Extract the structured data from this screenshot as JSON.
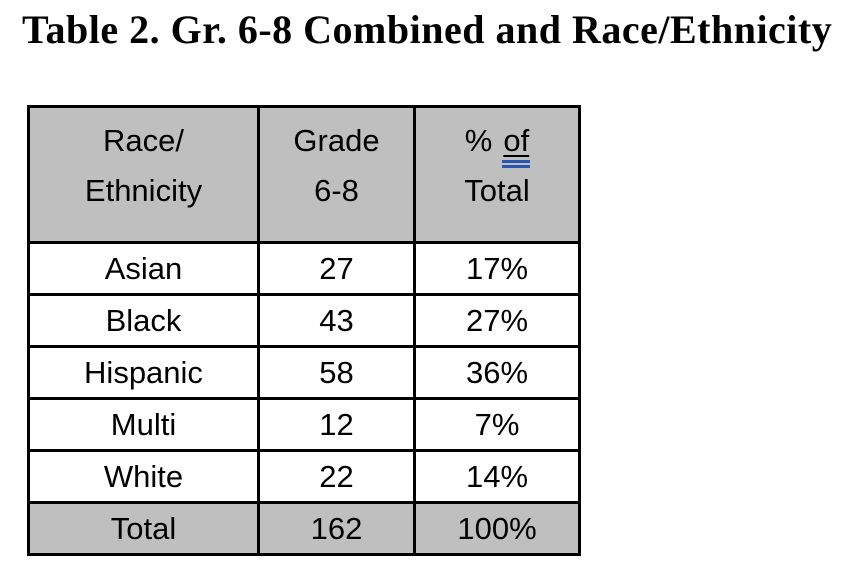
{
  "title": "Table 2. Gr. 6-8 Combined and Race/Ethnicity",
  "table": {
    "headers": {
      "race": {
        "line1": "Race/",
        "line2": "Ethnicity"
      },
      "grade": {
        "line1": "Grade",
        "line2": "6-8"
      },
      "percent": {
        "prefix": "%",
        "underlined_word": "of",
        "line2": "Total"
      }
    },
    "rows": [
      {
        "race": "Asian",
        "count": "27",
        "percent": "17%"
      },
      {
        "race": "Black",
        "count": "43",
        "percent": "27%"
      },
      {
        "race": "Hispanic",
        "count": "58",
        "percent": "36%"
      },
      {
        "race": "Multi",
        "count": "12",
        "percent": "7%"
      },
      {
        "race": "White",
        "count": "22",
        "percent": "14%"
      }
    ],
    "total": {
      "race": "Total",
      "count": "162",
      "percent": "100%"
    }
  },
  "colors": {
    "header_bg": "#bfbfbf",
    "total_bg": "#bfbfbf",
    "border": "#000000",
    "text": "#000000",
    "grammar_underline_blue": "#2b57b0"
  },
  "chart_data": {
    "type": "table",
    "title": "Table 2. Gr. 6-8 Combined and Race/Ethnicity",
    "columns": [
      "Race/Ethnicity",
      "Grade 6-8",
      "% of Total"
    ],
    "rows": [
      [
        "Asian",
        27,
        "17%"
      ],
      [
        "Black",
        43,
        "27%"
      ],
      [
        "Hispanic",
        58,
        "36%"
      ],
      [
        "Multi",
        12,
        "7%"
      ],
      [
        "White",
        22,
        "14%"
      ],
      [
        "Total",
        162,
        "100%"
      ]
    ]
  }
}
